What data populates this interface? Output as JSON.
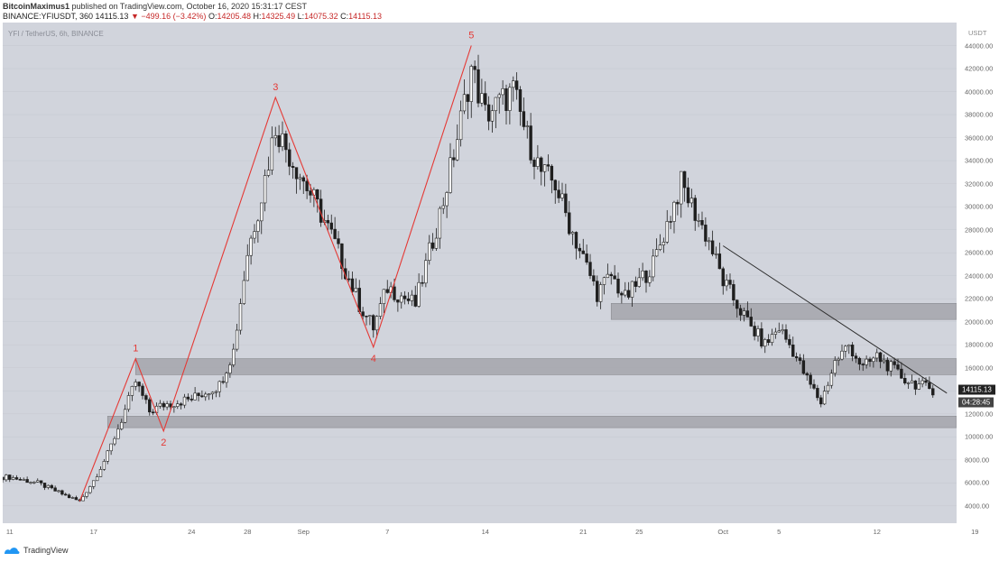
{
  "header": {
    "author": "BitcoinMaximus1",
    "published": "published on TradingView.com, October 16, 2020 15:31:17 CEST",
    "symbol_line": "BINANCE:YFIUSDT, 360",
    "last": "14115.13",
    "change_arrow": "▼",
    "change": "−499.16 (−3.42%)",
    "o_label": "O:",
    "o": "14205.48",
    "h_label": "H:",
    "h": "14325.49",
    "l_label": "L:",
    "l": "14075.32",
    "c_label": "C:",
    "c": "14115.13"
  },
  "chart_symbol": "YFI / TetherUS, 6h, BINANCE",
  "price_axis": {
    "unit": "USDT",
    "ticks": [
      "44000.00",
      "42000.00",
      "40000.00",
      "38000.00",
      "36000.00",
      "34000.00",
      "32000.00",
      "30000.00",
      "28000.00",
      "26000.00",
      "24000.00",
      "22000.00",
      "20000.00",
      "18000.00",
      "16000.00",
      "14000.00",
      "12000.00",
      "10000.00",
      "8000.00",
      "6000.00",
      "4000.00"
    ],
    "last_price": "14115.13",
    "timer": "04:28:45"
  },
  "time_axis": {
    "ticks": [
      "11",
      "17",
      "24",
      "28",
      "Sep",
      "7",
      "14",
      "21",
      "25",
      "Oct",
      "5",
      "12",
      "19"
    ]
  },
  "footer": {
    "brand": "TradingView"
  },
  "colors": {
    "wave": "#e53935",
    "zone": "#9e9fa5",
    "trendline": "#2b2b2b",
    "candle": "#1f1f1f",
    "bg": "#d1d4dc"
  },
  "chart_data": {
    "type": "candlestick",
    "title": "YFI / TetherUS, 6h, BINANCE",
    "ylim": [
      2500,
      46000
    ],
    "price_levels": [
      44000,
      42000,
      40000,
      38000,
      36000,
      34000,
      32000,
      30000,
      28000,
      26000,
      24000,
      22000,
      20000,
      18000,
      16000,
      14000,
      12000,
      10000,
      8000,
      6000,
      4000
    ],
    "close_path": [
      [
        "2020-08-11",
        6500
      ],
      [
        "2020-08-13",
        6000
      ],
      [
        "2020-08-15",
        4900
      ],
      [
        "2020-08-16",
        4400
      ],
      [
        "2020-08-17",
        6200
      ],
      [
        "2020-08-18",
        8500
      ],
      [
        "2020-08-19",
        11500
      ],
      [
        "2020-08-20",
        14800
      ],
      [
        "2020-08-21",
        12200
      ],
      [
        "2020-08-22",
        12800
      ],
      [
        "2020-08-24",
        13300
      ],
      [
        "2020-08-26",
        14500
      ],
      [
        "2020-08-27",
        17500
      ],
      [
        "2020-08-28",
        26000
      ],
      [
        "2020-08-29",
        31000
      ],
      [
        "2020-08-30",
        37000
      ],
      [
        "2020-08-31",
        34500
      ],
      [
        "2020-09-02",
        30000
      ],
      [
        "2020-09-03",
        27500
      ],
      [
        "2020-09-05",
        21500
      ],
      [
        "2020-09-06",
        19500
      ],
      [
        "2020-09-07",
        23000
      ],
      [
        "2020-09-09",
        21500
      ],
      [
        "2020-09-10",
        26000
      ],
      [
        "2020-09-11",
        30500
      ],
      [
        "2020-09-12",
        36000
      ],
      [
        "2020-09-13",
        42000
      ],
      [
        "2020-09-14",
        38000
      ],
      [
        "2020-09-16",
        40000
      ],
      [
        "2020-09-17",
        36000
      ],
      [
        "2020-09-18",
        33000
      ],
      [
        "2020-09-19",
        32000
      ],
      [
        "2020-09-20",
        28500
      ],
      [
        "2020-09-21",
        25500
      ],
      [
        "2020-09-22",
        22500
      ],
      [
        "2020-09-23",
        24000
      ],
      [
        "2020-09-24",
        22000
      ],
      [
        "2020-09-26",
        25000
      ],
      [
        "2020-09-27",
        28500
      ],
      [
        "2020-09-28",
        32000
      ],
      [
        "2020-09-29",
        29500
      ],
      [
        "2020-09-30",
        27000
      ],
      [
        "2020-10-01",
        23500
      ],
      [
        "2020-10-02",
        21500
      ],
      [
        "2020-10-03",
        19500
      ],
      [
        "2020-10-04",
        18000
      ],
      [
        "2020-10-05",
        19500
      ],
      [
        "2020-10-06",
        17500
      ],
      [
        "2020-10-07",
        15000
      ],
      [
        "2020-10-08",
        13000
      ],
      [
        "2020-10-09",
        16500
      ],
      [
        "2020-10-10",
        18000
      ],
      [
        "2020-10-11",
        16000
      ],
      [
        "2020-10-12",
        17000
      ],
      [
        "2020-10-13",
        16000
      ],
      [
        "2020-10-14",
        15000
      ],
      [
        "2020-10-15",
        14500
      ],
      [
        "2020-10-16",
        14115
      ]
    ],
    "wave_labels": [
      "1",
      "2",
      "3",
      "4",
      "5"
    ],
    "wave_points": [
      [
        "2020-08-16",
        4400
      ],
      [
        "2020-08-20",
        16800
      ],
      [
        "2020-08-22",
        10500
      ],
      [
        "2020-08-30",
        39500
      ],
      [
        "2020-09-06",
        17800
      ],
      [
        "2020-09-13",
        44000
      ]
    ],
    "zones": [
      {
        "from": 20200,
        "to": 21600,
        "start": "2020-09-23"
      },
      {
        "from": 15400,
        "to": 16800,
        "start": "2020-08-20"
      },
      {
        "from": 10800,
        "to": 11800,
        "start": "2020-08-18"
      }
    ],
    "trendline": [
      [
        "2020-10-01",
        26600
      ],
      [
        "2020-10-17",
        13800
      ]
    ]
  }
}
